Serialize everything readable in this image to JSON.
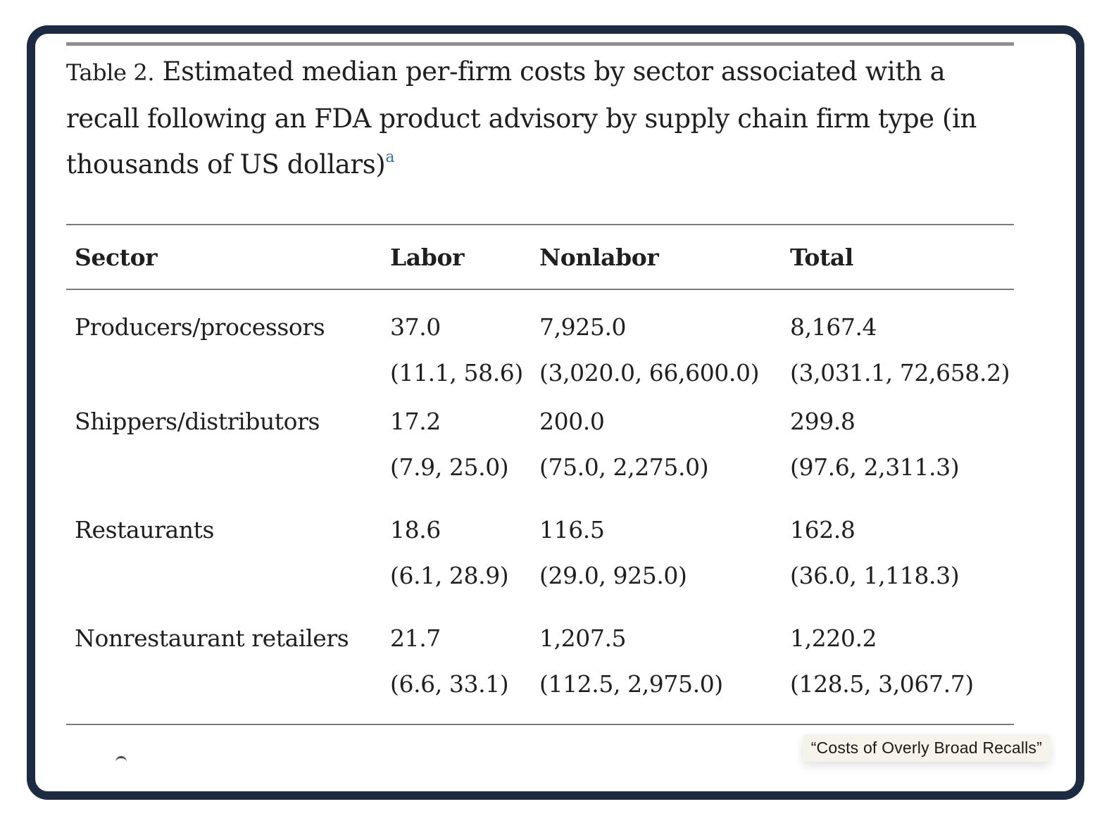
{
  "caption": {
    "label": "Table 2.",
    "text": "Estimated median per-firm costs by sector associated with a recall following an FDA product advisory by supply chain firm type (in thousands of US dollars)",
    "footnote_marker": "a"
  },
  "table": {
    "headers": [
      "Sector",
      "Labor",
      "Nonlabor",
      "Total"
    ],
    "rows": [
      {
        "sector": "Producers/processors",
        "labor": {
          "median": "37.0",
          "range": "(11.1, 58.6)"
        },
        "nonlabor": {
          "median": "7,925.0",
          "range": "(3,020.0, 66,600.0)"
        },
        "total": {
          "median": "8,167.4",
          "range": "(3,031.1, 72,658.2)"
        }
      },
      {
        "sector": "Shippers/distributors",
        "labor": {
          "median": "17.2",
          "range": "(7.9, 25.0)"
        },
        "nonlabor": {
          "median": "200.0",
          "range": "(75.0, 2,275.0)"
        },
        "total": {
          "median": "299.8",
          "range": "(97.6, 2,311.3)"
        }
      },
      {
        "sector": "Restaurants",
        "labor": {
          "median": "18.6",
          "range": "(6.1, 28.9)"
        },
        "nonlabor": {
          "median": "116.5",
          "range": "(29.0, 925.0)"
        },
        "total": {
          "median": "162.8",
          "range": "(36.0, 1,118.3)"
        }
      },
      {
        "sector": "Nonrestaurant retailers",
        "labor": {
          "median": "21.7",
          "range": "(6.6, 33.1)"
        },
        "nonlabor": {
          "median": "1,207.5",
          "range": "(112.5, 2,975.0)"
        },
        "total": {
          "median": "1,220.2",
          "range": "(128.5, 3,067.7)"
        }
      }
    ]
  },
  "tooltip": {
    "text": "“Costs of Overly Broad Recalls”"
  },
  "colors": {
    "frame_border": "#1c2a42",
    "footnote_link": "#2a73b8",
    "tooltip_bg": "#f6f4ea"
  }
}
